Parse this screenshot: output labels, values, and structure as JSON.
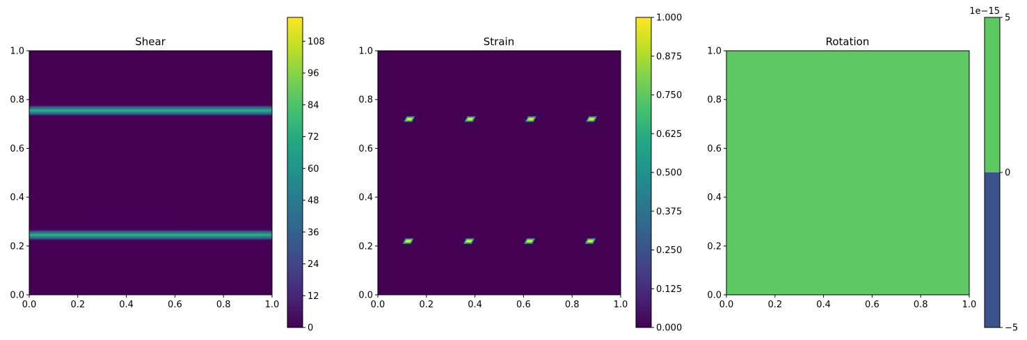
{
  "chart_data": [
    {
      "type": "heatmap",
      "title": "Shear",
      "xlim": [
        0,
        1
      ],
      "ylim": [
        0,
        1
      ],
      "xticks": [
        "0.0",
        "0.2",
        "0.4",
        "0.6",
        "0.8",
        "1.0"
      ],
      "yticks": [
        "0.0",
        "0.2",
        "0.4",
        "0.6",
        "0.8",
        "1.0"
      ],
      "background_color": "#440154",
      "features": [
        {
          "kind": "band",
          "y": 0.245,
          "half_width": 0.025,
          "value": 84
        },
        {
          "kind": "band",
          "y": 0.755,
          "half_width": 0.025,
          "value": 84
        }
      ],
      "colorbar": {
        "min": 0,
        "max": 117,
        "ticks": [
          0,
          12,
          24,
          36,
          48,
          60,
          72,
          84,
          96,
          108
        ],
        "tick_labels": [
          "0",
          "12",
          "24",
          "36",
          "48",
          "60",
          "72",
          "84",
          "96",
          "108"
        ],
        "colormap": "viridis"
      }
    },
    {
      "type": "heatmap",
      "title": "Strain",
      "xlim": [
        0,
        1
      ],
      "ylim": [
        0,
        1
      ],
      "xticks": [
        "0.0",
        "0.2",
        "0.4",
        "0.6",
        "0.8",
        "1.0"
      ],
      "yticks": [
        "0.0",
        "0.2",
        "0.4",
        "0.6",
        "0.8",
        "1.0"
      ],
      "background_color": "#440154",
      "features": [
        {
          "kind": "spot",
          "x": 0.13,
          "y": 0.72,
          "value": 1.0
        },
        {
          "kind": "spot",
          "x": 0.38,
          "y": 0.72,
          "value": 1.0
        },
        {
          "kind": "spot",
          "x": 0.63,
          "y": 0.72,
          "value": 1.0
        },
        {
          "kind": "spot",
          "x": 0.88,
          "y": 0.72,
          "value": 1.0
        },
        {
          "kind": "spot",
          "x": 0.125,
          "y": 0.22,
          "value": 1.0
        },
        {
          "kind": "spot",
          "x": 0.375,
          "y": 0.22,
          "value": 1.0
        },
        {
          "kind": "spot",
          "x": 0.625,
          "y": 0.22,
          "value": 1.0
        },
        {
          "kind": "spot",
          "x": 0.875,
          "y": 0.22,
          "value": 1.0
        }
      ],
      "colorbar": {
        "min": 0,
        "max": 1,
        "ticks": [
          0,
          0.125,
          0.25,
          0.375,
          0.5,
          0.625,
          0.75,
          0.875,
          1.0
        ],
        "tick_labels": [
          "0.000",
          "0.125",
          "0.250",
          "0.375",
          "0.500",
          "0.625",
          "0.750",
          "0.875",
          "1.000"
        ],
        "colormap": "viridis"
      }
    },
    {
      "type": "heatmap",
      "title": "Rotation",
      "xlim": [
        0,
        1
      ],
      "ylim": [
        0,
        1
      ],
      "xticks": [
        "0.0",
        "0.2",
        "0.4",
        "0.6",
        "0.8",
        "1.0"
      ],
      "yticks": [
        "0.0",
        "0.2",
        "0.4",
        "0.6",
        "0.8",
        "1.0"
      ],
      "background_color": "#5ec962",
      "features": [],
      "colorbar": {
        "min": -5,
        "max": 5,
        "ticks": [
          -5,
          0,
          5
        ],
        "tick_labels": [
          "−5",
          "0",
          "5"
        ],
        "offset_label": "1e−15",
        "levels": [
          {
            "from": -5,
            "to": 0,
            "color": "#3b528b"
          },
          {
            "from": 0,
            "to": 5,
            "color": "#5ec962"
          }
        ]
      }
    }
  ]
}
